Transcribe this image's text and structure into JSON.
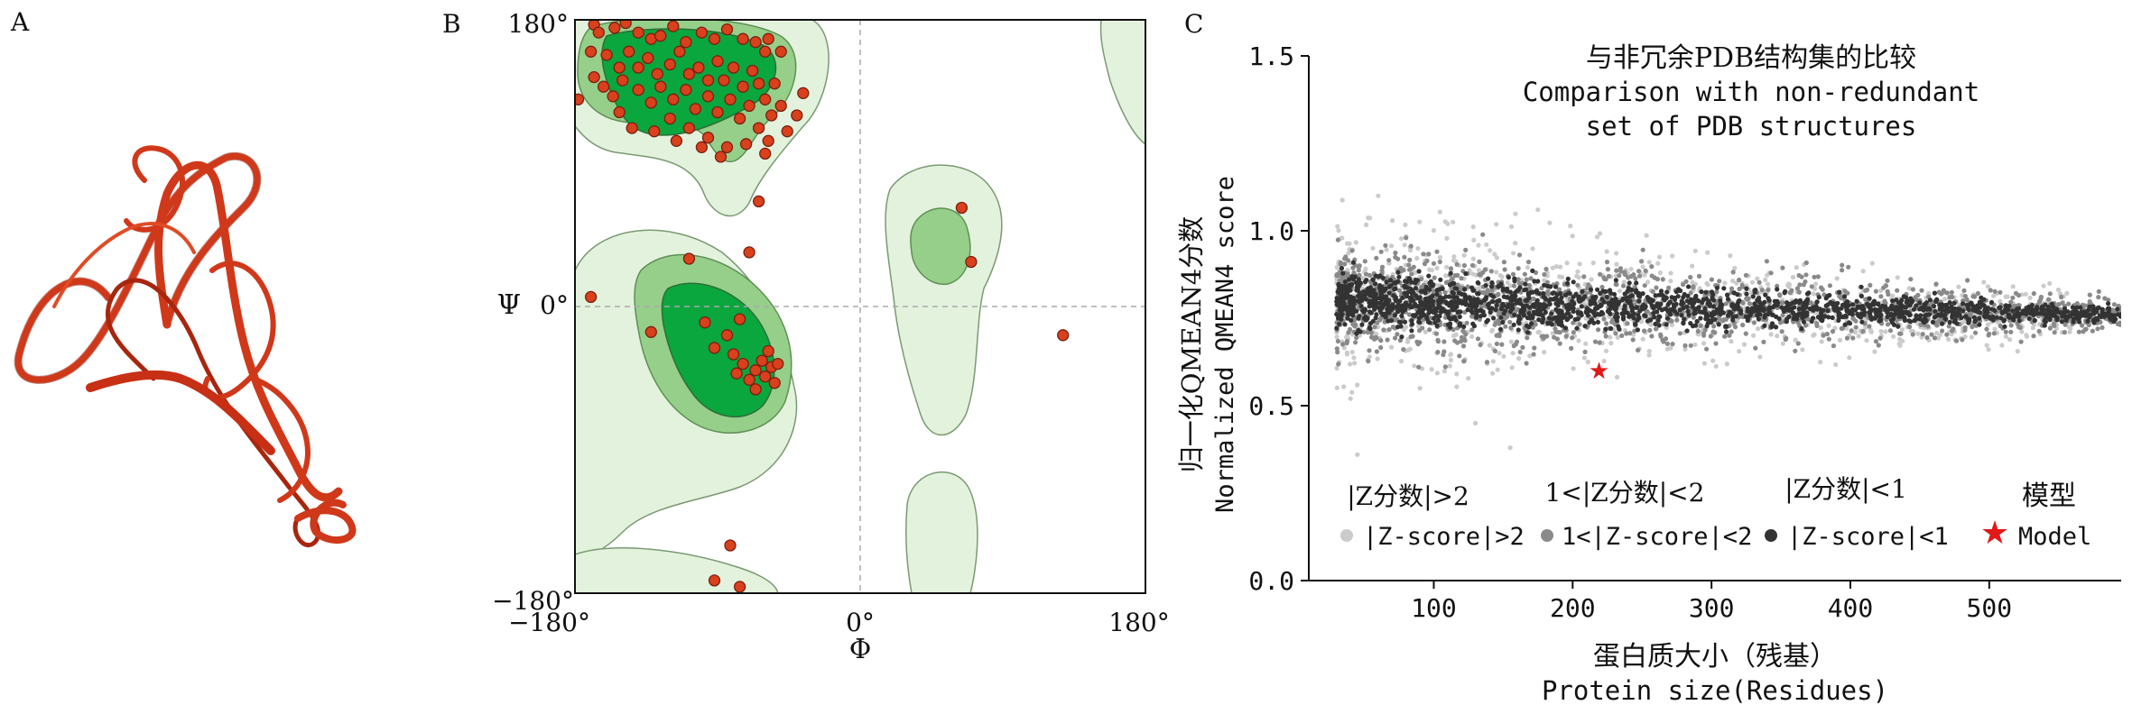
{
  "panels": {
    "a": {
      "letter": "A"
    },
    "b": {
      "letter": "B"
    },
    "c": {
      "letter": "C"
    }
  },
  "colors": {
    "ribbon": "#d0381a",
    "ribbon_dark": "#8a1a08",
    "rama_light": "#e3f2dd",
    "rama_mid": "#96cf8a",
    "rama_core": "#0aa63e",
    "residue": "#d9401c",
    "residue_edge": "#7a2010",
    "z_gt2": "#cbcbcb",
    "z_1to2": "#8a8a8a",
    "z_lt1": "#333333",
    "model_star": "#e01818"
  },
  "chart_data": [
    {
      "type": "scatter",
      "panel": "B",
      "title": "",
      "xlabel": "Φ",
      "ylabel": "Ψ",
      "xlim": [
        -180,
        180
      ],
      "ylim": [
        -180,
        180
      ],
      "x_tick_labels": [
        "−180°",
        "0°",
        "180°"
      ],
      "y_tick_labels": [
        "180°",
        "0°",
        "−180°"
      ],
      "ylabel_with_tick": "Ψ",
      "series": [
        {
          "name": "residues",
          "points": [
            [
              -168,
              177
            ],
            [
              -165,
              172
            ],
            [
              -155,
              175
            ],
            [
              -148,
              178
            ],
            [
              -140,
              172
            ],
            [
              -132,
              168
            ],
            [
              -126,
              170
            ],
            [
              -118,
              176
            ],
            [
              -110,
              166
            ],
            [
              -100,
              172
            ],
            [
              -92,
              168
            ],
            [
              -84,
              174
            ],
            [
              -74,
              168
            ],
            [
              -66,
              166
            ],
            [
              -60,
              160
            ],
            [
              -58,
              168
            ],
            [
              -170,
              160
            ],
            [
              -160,
              158
            ],
            [
              -152,
              150
            ],
            [
              -146,
              160
            ],
            [
              -140,
              150
            ],
            [
              -134,
              156
            ],
            [
              -128,
              146
            ],
            [
              -120,
              152
            ],
            [
              -114,
              160
            ],
            [
              -108,
              146
            ],
            [
              -102,
              150
            ],
            [
              -96,
              142
            ],
            [
              -90,
              154
            ],
            [
              -86,
              142
            ],
            [
              -80,
              150
            ],
            [
              -74,
              138
            ],
            [
              -68,
              148
            ],
            [
              -64,
              140
            ],
            [
              -60,
              130
            ],
            [
              -56,
              120
            ],
            [
              -168,
              144
            ],
            [
              -162,
              138
            ],
            [
              -156,
              132
            ],
            [
              -150,
              142
            ],
            [
              -140,
              136
            ],
            [
              -132,
              128
            ],
            [
              -126,
              138
            ],
            [
              -118,
              130
            ],
            [
              -110,
              136
            ],
            [
              -104,
              124
            ],
            [
              -96,
              132
            ],
            [
              -90,
              122
            ],
            [
              -82,
              130
            ],
            [
              -76,
              118
            ],
            [
              -70,
              126
            ],
            [
              -64,
              112
            ],
            [
              -58,
              104
            ],
            [
              -50,
              126
            ],
            [
              -120,
              118
            ],
            [
              -108,
              112
            ],
            [
              -96,
              106
            ],
            [
              -84,
              100
            ],
            [
              -72,
              102
            ],
            [
              -60,
              96
            ],
            [
              -54,
              140
            ],
            [
              -46,
              110
            ],
            [
              -40,
              120
            ],
            [
              -152,
              122
            ],
            [
              -144,
              112
            ],
            [
              -130,
              110
            ],
            [
              -116,
              104
            ],
            [
              -100,
              100
            ],
            [
              -88,
              94
            ],
            [
              -178,
              130
            ],
            [
              -36,
              134
            ],
            [
              -50,
              160
            ],
            [
              -64,
              66
            ],
            [
              -70,
              34
            ],
            [
              -108,
              30
            ],
            [
              -76,
              -8
            ],
            [
              -84,
              -18
            ],
            [
              -80,
              -30
            ],
            [
              -78,
              -42
            ],
            [
              -74,
              -36
            ],
            [
              -70,
              -46
            ],
            [
              -66,
              -40
            ],
            [
              -62,
              -34
            ],
            [
              -60,
              -44
            ],
            [
              -56,
              -38
            ],
            [
              -54,
              -48
            ],
            [
              -52,
              -36
            ],
            [
              -58,
              -28
            ],
            [
              -66,
              -52
            ],
            [
              -92,
              -26
            ],
            [
              -98,
              -10
            ],
            [
              -132,
              -16
            ],
            [
              -170,
              6
            ],
            [
              64,
              62
            ],
            [
              70,
              28
            ],
            [
              128,
              -18
            ],
            [
              -82,
              -150
            ],
            [
              -76,
              -176
            ],
            [
              -92,
              -172
            ]
          ]
        }
      ]
    },
    {
      "type": "scatter",
      "panel": "C",
      "title_cn": "与非冗余PDB结构集的比较",
      "title_en_line1": "Comparison with non-redundant",
      "title_en_line2": "set of PDB structures",
      "xlabel_cn": "蛋白质大小（残基）",
      "xlabel_en": "Protein size(Residues)",
      "ylabel_cn": "归一化QMEAN4分数",
      "ylabel_en": "Normalized QMEAN4 score",
      "xlim": [
        10,
        595
      ],
      "ylim": [
        0.0,
        1.5
      ],
      "x_ticks": [
        100,
        200,
        300,
        400,
        500
      ],
      "y_ticks": [
        0.0,
        0.5,
        1.0,
        1.5
      ],
      "x_tick_labels": [
        "100",
        "200",
        "300",
        "400",
        "500"
      ],
      "y_tick_labels": [
        "0.0",
        "0.5",
        "1.0",
        "1.5"
      ],
      "legend": [
        {
          "cn": "|Z分数|>2",
          "en": "|Z-score|>2",
          "color": "#cbcbcb",
          "marker": "circle"
        },
        {
          "cn": "1<|Z分数|<2",
          "en": "1<|Z-score|<2",
          "color": "#8a8a8a",
          "marker": "circle"
        },
        {
          "cn": "|Z分数|<1",
          "en": "|Z-score|<1",
          "color": "#333333",
          "marker": "circle"
        },
        {
          "cn": "模型",
          "en": "Model",
          "color": "#e01818",
          "marker": "star"
        }
      ],
      "legend_position": "bottom",
      "series": [
        {
          "name": "|Z-score|<1",
          "band": {
            "x": [
              30,
              595
            ],
            "center_at_start": 0.8,
            "center_at_end": 0.76,
            "half_width_at_start": 0.085,
            "half_width_at_end": 0.03
          }
        },
        {
          "name": "1<|Z-score|<2",
          "band": {
            "x": [
              30,
              595
            ],
            "center_at_start": 0.8,
            "center_at_end": 0.76,
            "half_width_at_start": 0.17,
            "half_width_at_end": 0.06
          }
        },
        {
          "name": "|Z-score|>2",
          "band": {
            "x": [
              30,
              560
            ],
            "center_at_start": 0.8,
            "center_at_end": 0.76,
            "half_width_at_start": 0.26,
            "half_width_at_end": 0.08
          },
          "outliers": [
            [
              45,
              0.36
            ],
            [
              60,
              1.1
            ],
            [
              130,
              0.45
            ],
            [
              155,
              0.38
            ],
            [
              175,
              1.06
            ],
            [
              40,
              0.52
            ],
            [
              90,
              0.55
            ],
            [
              110,
              1.02
            ]
          ]
        },
        {
          "name": "Model",
          "points": [
            [
              219,
              0.6
            ]
          ]
        }
      ]
    }
  ]
}
